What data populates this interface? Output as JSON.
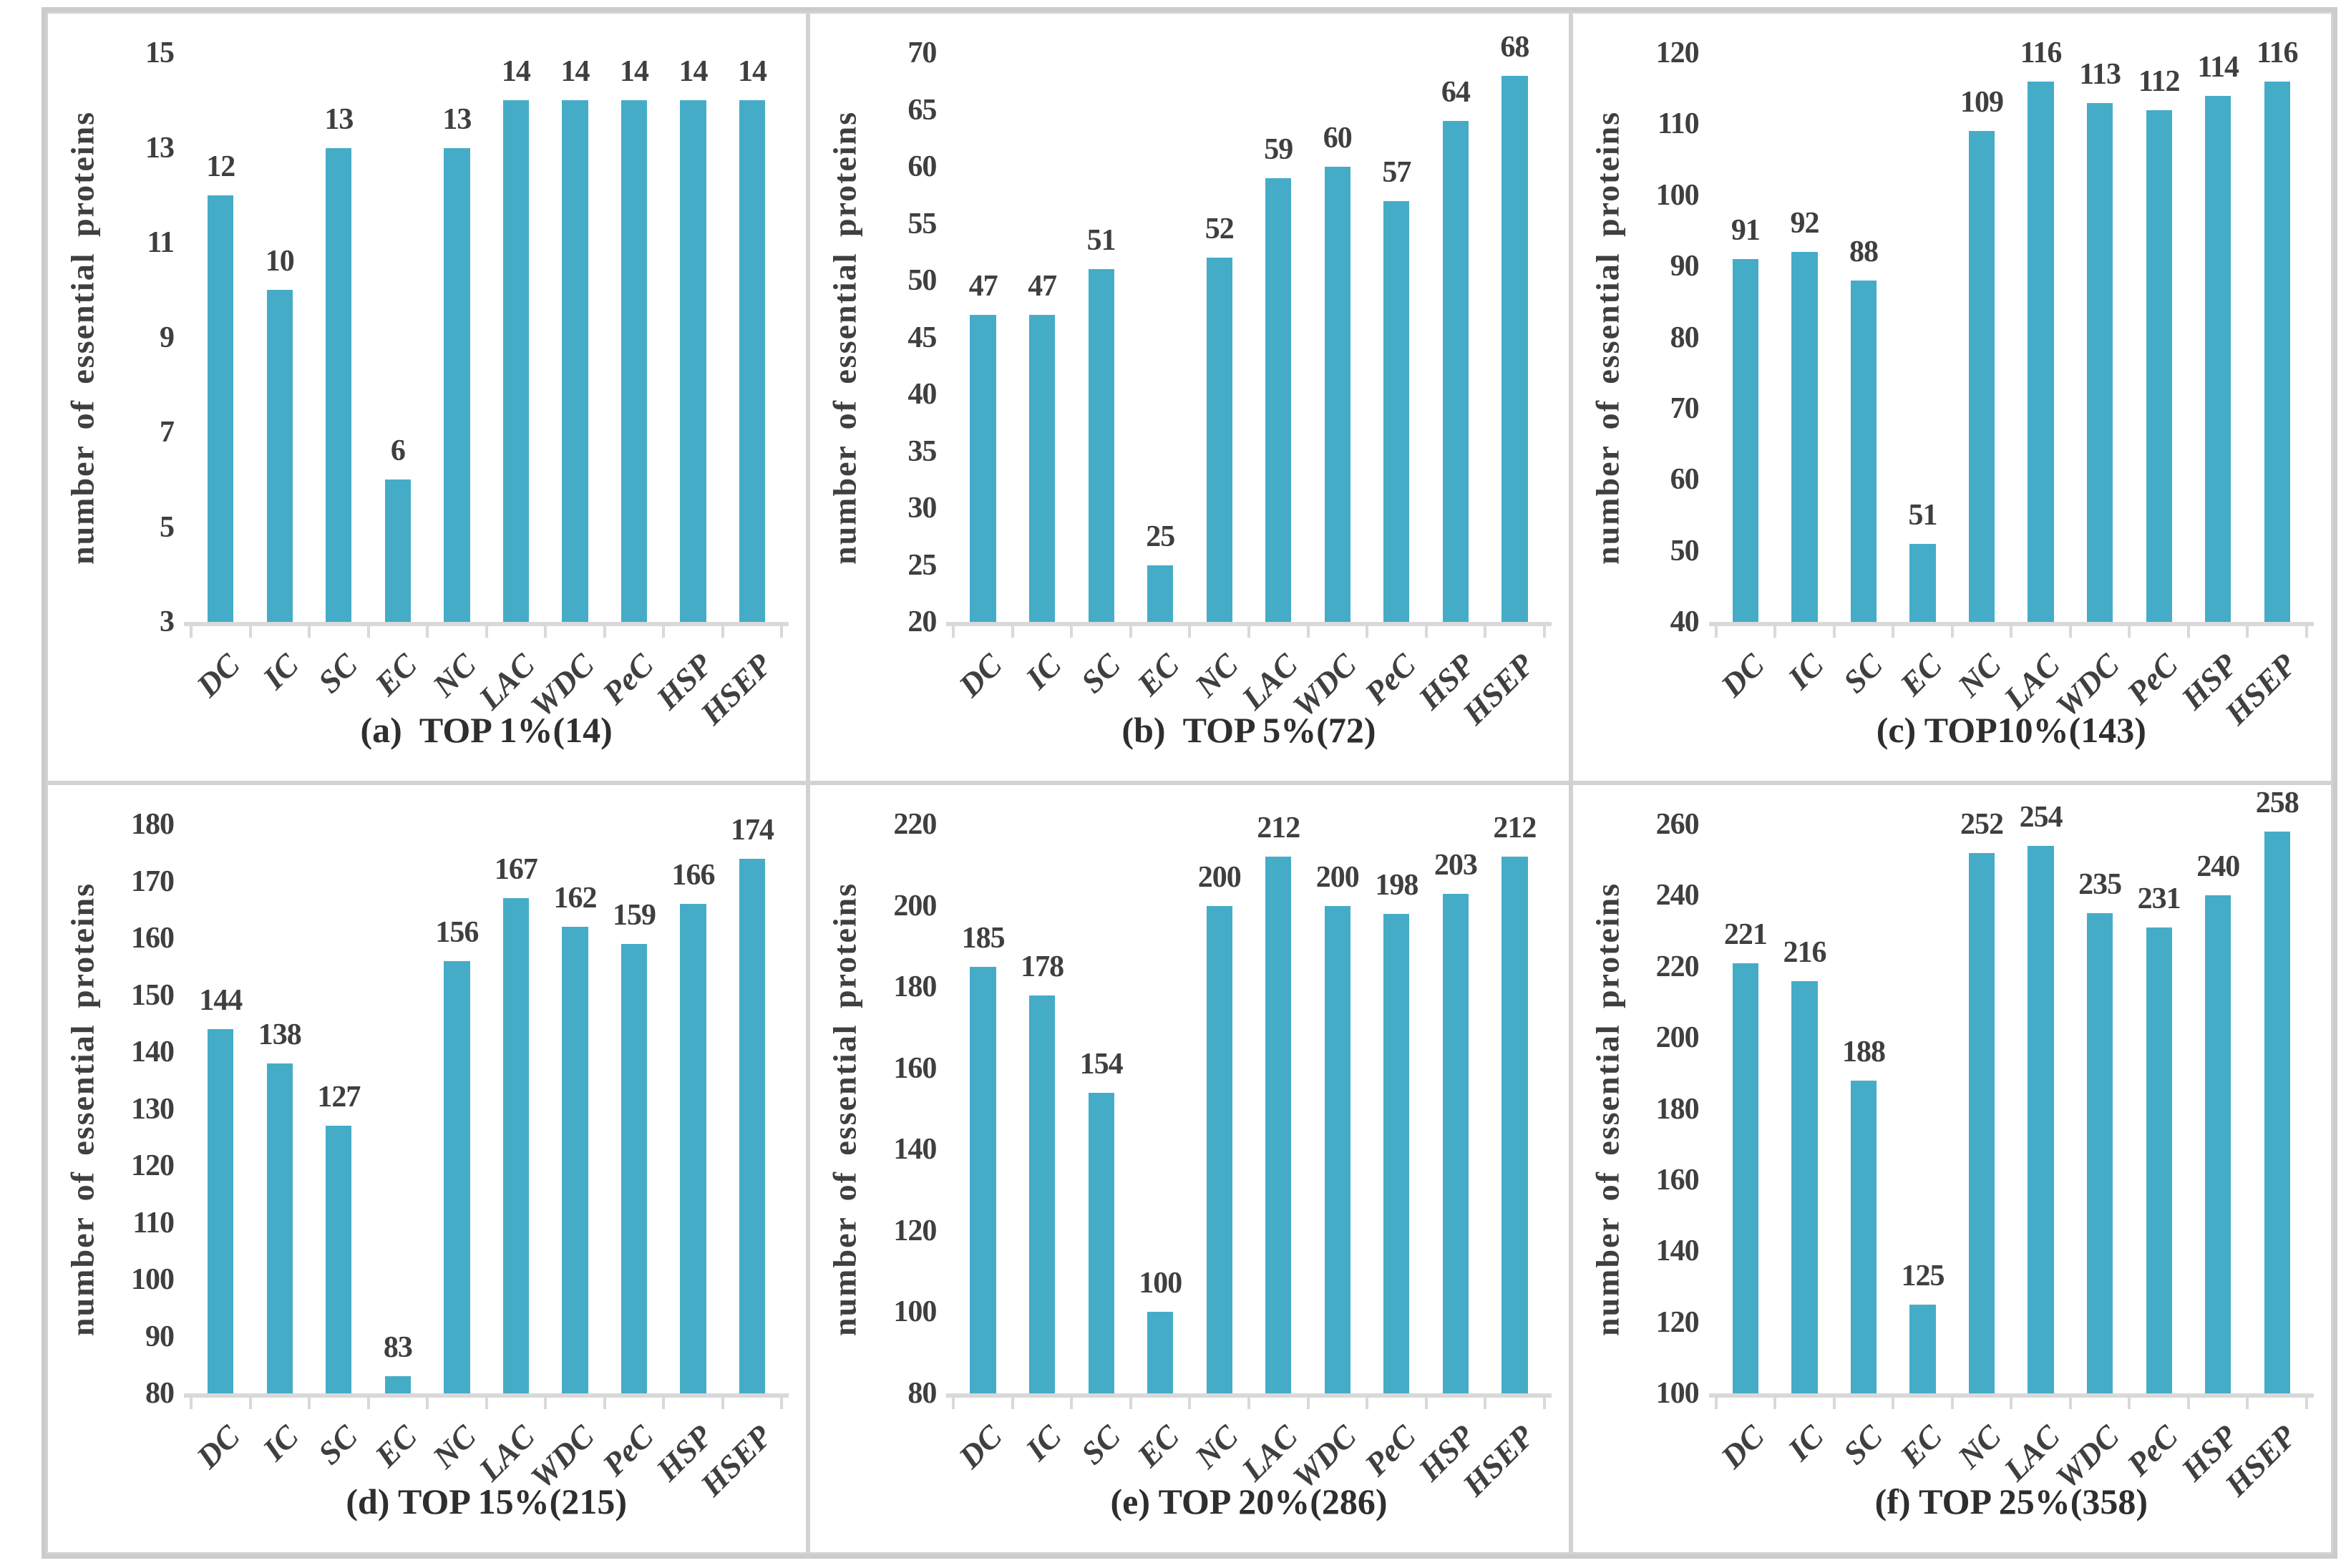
{
  "figure": {
    "ylabel": "number of essential proteins",
    "categories": [
      "DC",
      "IC",
      "SC",
      "EC",
      "NC",
      "LAC",
      "WDC",
      "PeC",
      "HSP",
      "HSEP"
    ],
    "colors": {
      "bar": "#45ACC8",
      "label_text": "#3F3F3F",
      "caption_text": "#2E2E2E",
      "axis": "#D9D9D9",
      "panel_border": "#D2D2D2",
      "outer_border": "#CBCBCB"
    }
  },
  "chart_data": [
    {
      "type": "bar",
      "title": "(a)  TOP 1%(14)",
      "ylabel": "number of essential proteins",
      "categories": [
        "DC",
        "IC",
        "SC",
        "EC",
        "NC",
        "LAC",
        "WDC",
        "PeC",
        "HSP",
        "HSEP"
      ],
      "values": [
        12,
        10,
        13,
        6,
        13,
        14,
        14,
        14,
        14,
        14
      ],
      "ylim": [
        3,
        15
      ],
      "ytick_step": 2,
      "grid": false,
      "legend": "none"
    },
    {
      "type": "bar",
      "title": "(b)  TOP 5%(72)",
      "ylabel": "number of essential proteins",
      "categories": [
        "DC",
        "IC",
        "SC",
        "EC",
        "NC",
        "LAC",
        "WDC",
        "PeC",
        "HSP",
        "HSEP"
      ],
      "values": [
        47,
        47,
        51,
        25,
        52,
        59,
        60,
        57,
        64,
        68
      ],
      "ylim": [
        20,
        70
      ],
      "ytick_step": 5,
      "grid": false,
      "legend": "none"
    },
    {
      "type": "bar",
      "title": "(c) TOP10%(143)",
      "ylabel": "number of essential proteins",
      "categories": [
        "DC",
        "IC",
        "SC",
        "EC",
        "NC",
        "LAC",
        "WDC",
        "PeC",
        "HSP",
        "HSEP"
      ],
      "values": [
        91,
        92,
        88,
        51,
        109,
        116,
        113,
        112,
        114,
        116
      ],
      "ylim": [
        40,
        120
      ],
      "ytick_step": 10,
      "grid": false,
      "legend": "none"
    },
    {
      "type": "bar",
      "title": "(d) TOP 15%(215)",
      "ylabel": "number of essential proteins",
      "categories": [
        "DC",
        "IC",
        "SC",
        "EC",
        "NC",
        "LAC",
        "WDC",
        "PeC",
        "HSP",
        "HSEP"
      ],
      "values": [
        144,
        138,
        127,
        83,
        156,
        167,
        162,
        159,
        166,
        174
      ],
      "ylim": [
        80,
        180
      ],
      "ytick_step": 10,
      "grid": false,
      "legend": "none"
    },
    {
      "type": "bar",
      "title": "(e) TOP 20%(286)",
      "ylabel": "number of essential proteins",
      "categories": [
        "DC",
        "IC",
        "SC",
        "EC",
        "NC",
        "LAC",
        "WDC",
        "PeC",
        "HSP",
        "HSEP"
      ],
      "values": [
        185,
        178,
        154,
        100,
        200,
        212,
        200,
        198,
        203,
        212
      ],
      "ylim": [
        80,
        220
      ],
      "ytick_step": 20,
      "grid": false,
      "legend": "none"
    },
    {
      "type": "bar",
      "title": "(f) TOP 25%(358)",
      "ylabel": "number of essential proteins",
      "categories": [
        "DC",
        "IC",
        "SC",
        "EC",
        "NC",
        "LAC",
        "WDC",
        "PeC",
        "HSP",
        "HSEP"
      ],
      "values": [
        221,
        216,
        188,
        125,
        252,
        254,
        235,
        231,
        240,
        258
      ],
      "ylim": [
        100,
        260
      ],
      "ytick_step": 20,
      "grid": false,
      "legend": "none"
    }
  ]
}
